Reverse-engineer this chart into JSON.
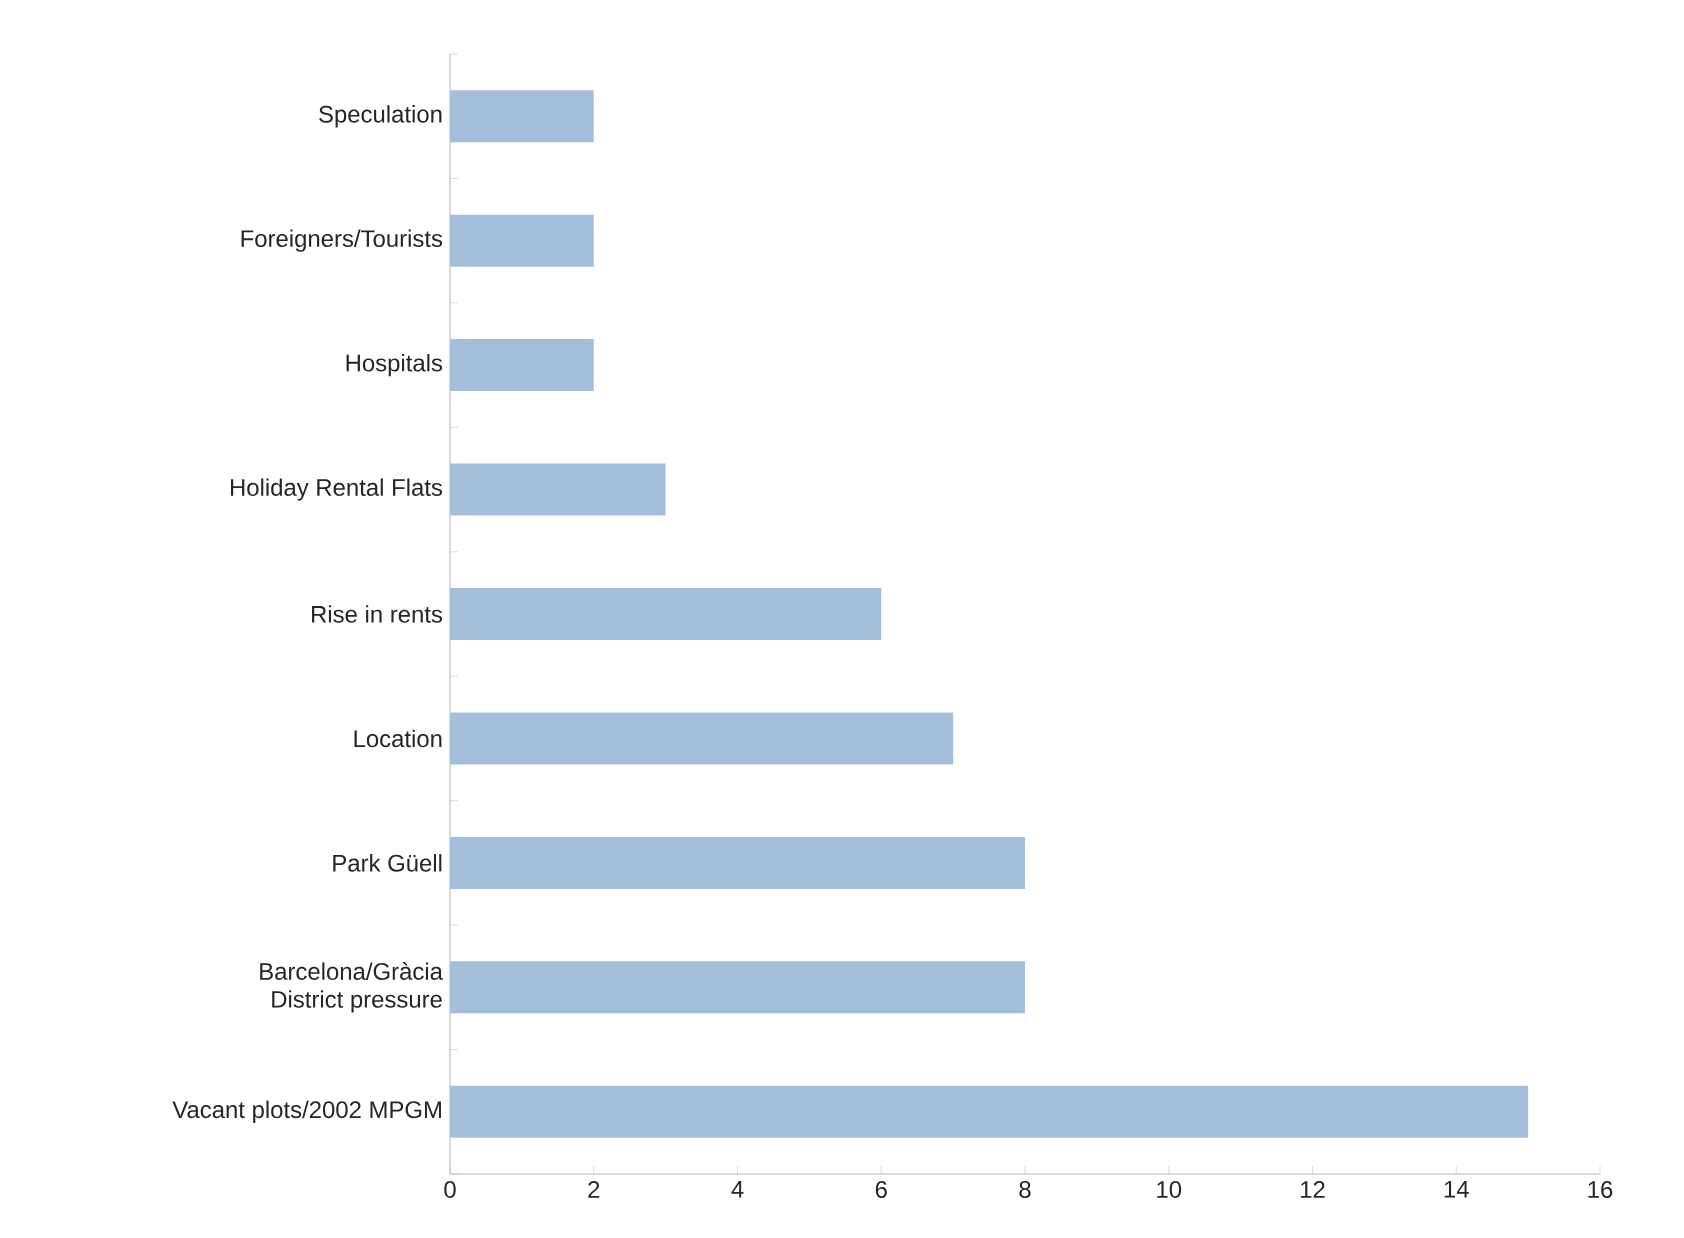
{
  "chart_data": {
    "type": "bar",
    "orientation": "horizontal",
    "categories": [
      "Speculation",
      "Foreigners/Tourists",
      "Hospitals",
      "Holiday Rental Flats",
      "Rise in rents",
      "Location",
      "Park Güell",
      "Barcelona/Gràcia District pressure",
      "Vacant plots/2002 MPGM"
    ],
    "values": [
      2,
      2,
      2,
      3,
      6,
      7,
      8,
      8,
      15
    ],
    "color": "#a5bedb",
    "xlim": [
      0,
      16
    ],
    "xticks": [
      0,
      2,
      4,
      6,
      8,
      10,
      12,
      14,
      16
    ]
  }
}
